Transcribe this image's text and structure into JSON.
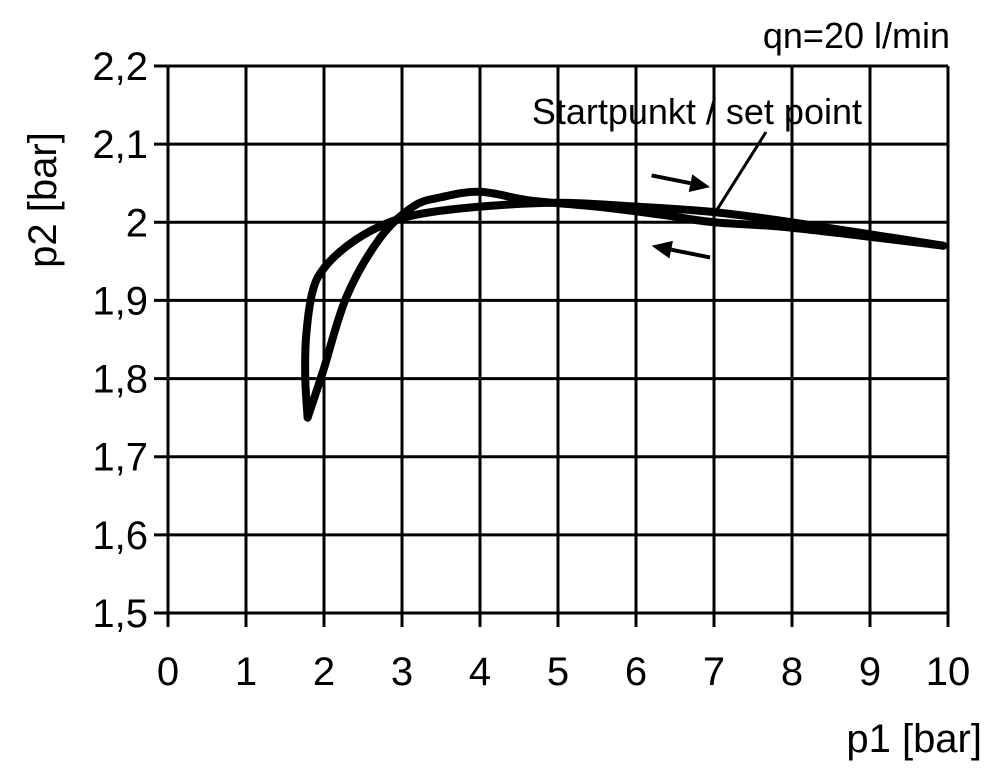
{
  "chart_data": {
    "type": "line",
    "title": "",
    "annotation_top_right": "qn=20 l/min",
    "setpoint_label": "Startpunkt / set point",
    "setpoint": {
      "x": 7,
      "y": 2.01
    },
    "xlabel": "p1 [bar]",
    "ylabel": "p2 [bar]",
    "xlim": [
      0,
      10
    ],
    "ylim": [
      1.5,
      2.2
    ],
    "xticks": [
      0,
      1,
      2,
      3,
      4,
      5,
      6,
      7,
      8,
      9,
      10
    ],
    "xtick_labels": [
      "0",
      "1",
      "2",
      "3",
      "4",
      "5",
      "6",
      "7",
      "8",
      "9",
      "10"
    ],
    "yticks": [
      1.5,
      1.6,
      1.7,
      1.8,
      1.9,
      2.0,
      2.1,
      2.2
    ],
    "ytick_labels": [
      "1,5",
      "1,6",
      "1,7",
      "1,8",
      "1,9",
      "2",
      "2,1",
      "2,2"
    ],
    "grid": true,
    "color": "#000000",
    "series": [
      {
        "points": [
          [
            1.79,
            1.75
          ],
          [
            1.76,
            1.8
          ],
          [
            1.77,
            1.853
          ],
          [
            1.85,
            1.91
          ],
          [
            1.99,
            1.94
          ],
          [
            2.3,
            1.97
          ],
          [
            2.72,
            1.995
          ],
          [
            3.2,
            2.01
          ],
          [
            4.0,
            2.02
          ],
          [
            5.0,
            2.025
          ],
          [
            6.0,
            2.02
          ],
          [
            7.0,
            2.013
          ],
          [
            8.0,
            2.0
          ],
          [
            9.94,
            1.97
          ]
        ]
      },
      {
        "points": [
          [
            1.79,
            1.75
          ],
          [
            1.99,
            1.81
          ],
          [
            2.29,
            1.905
          ],
          [
            2.72,
            1.98
          ],
          [
            3.14,
            2.02
          ],
          [
            3.5,
            2.032
          ],
          [
            4.0,
            2.039
          ],
          [
            4.64,
            2.028
          ],
          [
            5.5,
            2.02
          ],
          [
            6.3,
            2.01
          ],
          [
            7.0,
            2.0
          ],
          [
            8.0,
            1.993
          ],
          [
            9.94,
            1.97
          ]
        ]
      }
    ],
    "arrows": [
      {
        "direction": "right",
        "from": [
          6.2,
          2.06
        ],
        "to": [
          6.95,
          2.045
        ]
      },
      {
        "direction": "left",
        "from": [
          6.95,
          1.955
        ],
        "to": [
          6.2,
          1.97
        ]
      }
    ]
  }
}
